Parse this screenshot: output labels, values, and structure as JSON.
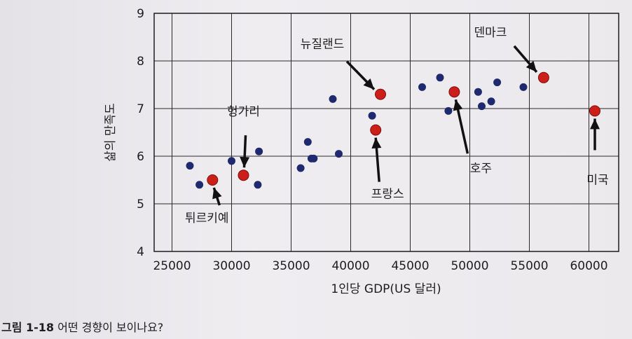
{
  "caption": {
    "label": "그림 1-18",
    "text": "어떤 경향이 보이나요?"
  },
  "colors": {
    "other_point": "#1f2a6e",
    "highlight_point": "#cc1f1a",
    "grid": "#2a2a2a",
    "text": "#1d1d1f"
  },
  "chart_data": {
    "type": "scatter",
    "xlabel": "1인당 GDP(US 달러)",
    "ylabel": "삶의 만족도",
    "xlim": [
      23500,
      62500
    ],
    "ylim": [
      4,
      9
    ],
    "xticks": [
      25000,
      30000,
      35000,
      40000,
      45000,
      50000,
      55000,
      60000
    ],
    "yticks": [
      4,
      5,
      6,
      7,
      8,
      9
    ],
    "grid": true,
    "series": [
      {
        "color": "#1f2a6e",
        "points": [
          {
            "x": 26500,
            "y": 5.8
          },
          {
            "x": 27300,
            "y": 5.4
          },
          {
            "x": 30000,
            "y": 5.9
          },
          {
            "x": 32300,
            "y": 6.1
          },
          {
            "x": 32200,
            "y": 5.4
          },
          {
            "x": 35800,
            "y": 5.75
          },
          {
            "x": 36400,
            "y": 6.3
          },
          {
            "x": 36700,
            "y": 5.95
          },
          {
            "x": 36900,
            "y": 5.95
          },
          {
            "x": 38500,
            "y": 7.2
          },
          {
            "x": 39000,
            "y": 6.05
          },
          {
            "x": 41800,
            "y": 6.85
          },
          {
            "x": 46000,
            "y": 7.45
          },
          {
            "x": 47500,
            "y": 7.65
          },
          {
            "x": 48200,
            "y": 6.95
          },
          {
            "x": 50700,
            "y": 7.35
          },
          {
            "x": 51000,
            "y": 7.05
          },
          {
            "x": 51800,
            "y": 7.15
          },
          {
            "x": 52300,
            "y": 7.55
          },
          {
            "x": 54500,
            "y": 7.45
          }
        ]
      },
      {
        "color": "#cc1f1a",
        "points": [
          {
            "x": 28400,
            "y": 5.5,
            "label": "튀르키예"
          },
          {
            "x": 31000,
            "y": 5.6,
            "label": "헝가리"
          },
          {
            "x": 42500,
            "y": 7.3,
            "label": "뉴질랜드"
          },
          {
            "x": 42100,
            "y": 6.55,
            "label": "프랑스"
          },
          {
            "x": 48700,
            "y": 7.35,
            "label": "호주"
          },
          {
            "x": 56200,
            "y": 7.65,
            "label": "덴마크"
          },
          {
            "x": 60500,
            "y": 6.95,
            "label": "미국"
          }
        ]
      }
    ]
  }
}
